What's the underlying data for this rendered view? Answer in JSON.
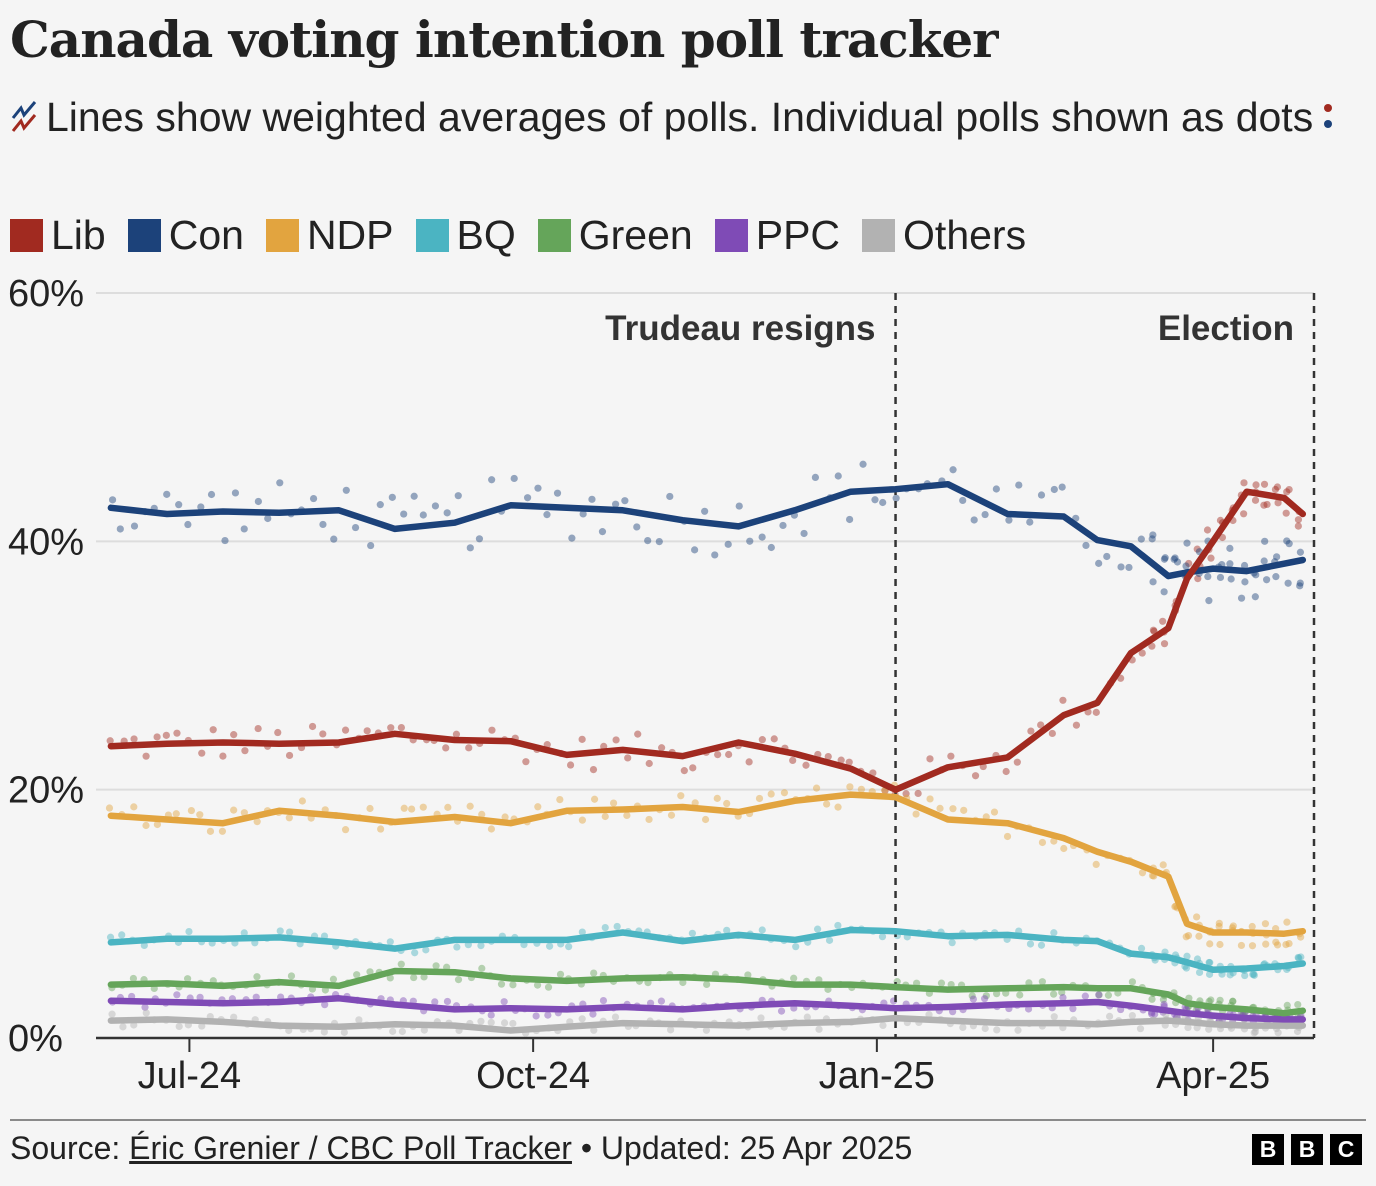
{
  "title": "Canada voting intention poll tracker",
  "subtitle_text": "Lines show weighted averages of polls. Individual polls shown as dots",
  "footer": {
    "source_prefix": "Source: ",
    "source_link": "Éric Grenier / CBC Poll Tracker",
    "updated_text": " • Updated: 25 Apr 2025"
  },
  "logo": [
    "B",
    "B",
    "C"
  ],
  "chart_data": {
    "type": "line",
    "y_ticks": [
      "0%",
      "20%",
      "40%",
      "60%"
    ],
    "y_tick_values": [
      0,
      20,
      40,
      60
    ],
    "ylim": [
      0,
      60
    ],
    "x_ticks": [
      "Jul-24",
      "Oct-24",
      "Jan-25",
      "Apr-25"
    ],
    "x_tick_dates": [
      "2024-07-01",
      "2024-10-01",
      "2025-01-01",
      "2025-04-01"
    ],
    "xlim": [
      "2024-06-06",
      "2025-04-28"
    ],
    "grid": true,
    "legend_position": "top-left",
    "annotations": [
      {
        "label": "Trudeau resigns",
        "date": "2025-01-06"
      },
      {
        "label": "Election",
        "date": "2025-04-28"
      }
    ],
    "dates": [
      "2024-06-10",
      "2024-06-25",
      "2024-07-10",
      "2024-07-25",
      "2024-08-10",
      "2024-08-25",
      "2024-09-10",
      "2024-09-25",
      "2024-10-10",
      "2024-10-25",
      "2024-11-10",
      "2024-11-25",
      "2024-12-10",
      "2024-12-25",
      "2025-01-06",
      "2025-01-20",
      "2025-02-05",
      "2025-02-20",
      "2025-03-01",
      "2025-03-10",
      "2025-03-20",
      "2025-03-25",
      "2025-04-01",
      "2025-04-10",
      "2025-04-20",
      "2025-04-25"
    ],
    "series": [
      {
        "name": "Lib",
        "color": "#a12a20",
        "values": [
          23.5,
          23.7,
          23.8,
          23.7,
          23.8,
          24.5,
          24,
          23.9,
          22.8,
          23.2,
          22.7,
          23.8,
          22.9,
          21.7,
          20,
          21.8,
          22.6,
          26,
          27,
          31,
          33,
          37,
          40,
          44,
          43.5,
          42.2
        ]
      },
      {
        "name": "Con",
        "color": "#1c427a",
        "values": [
          42.7,
          42.2,
          42.4,
          42.3,
          42.5,
          41,
          41.5,
          42.9,
          42.7,
          42.5,
          41.7,
          41.2,
          42.5,
          44,
          44.2,
          44.6,
          42.2,
          42,
          40.1,
          39.6,
          37.2,
          37.5,
          37.8,
          37.6,
          38.2,
          38.5
        ]
      },
      {
        "name": "NDP",
        "color": "#e2a43f",
        "values": [
          17.9,
          17.6,
          17.3,
          18.3,
          17.9,
          17.4,
          17.8,
          17.3,
          18.3,
          18.4,
          18.6,
          18.2,
          19.1,
          19.6,
          19.4,
          17.6,
          17.3,
          16.1,
          15,
          14.2,
          13,
          9.2,
          8.5,
          8.5,
          8.4,
          8.6
        ]
      },
      {
        "name": "BQ",
        "color": "#4bb4c2",
        "values": [
          7.7,
          8,
          8,
          8.1,
          7.7,
          7.2,
          7.9,
          7.9,
          7.9,
          8.5,
          7.8,
          8.3,
          7.9,
          8.7,
          8.6,
          8.2,
          8.3,
          7.9,
          7.8,
          6.8,
          6.5,
          6.1,
          5.5,
          5.6,
          5.8,
          6
        ]
      },
      {
        "name": "Green",
        "color": "#65a55a",
        "values": [
          4.3,
          4.4,
          4.2,
          4.5,
          4.2,
          5.4,
          5.3,
          4.8,
          4.6,
          4.8,
          4.9,
          4.7,
          4.3,
          4.3,
          4.1,
          3.9,
          4,
          4.1,
          4,
          4,
          3.5,
          2.8,
          2.5,
          2.3,
          2,
          2.2
        ]
      },
      {
        "name": "PPC",
        "color": "#7f4bb6",
        "values": [
          3,
          2.9,
          2.8,
          2.9,
          3.2,
          2.7,
          2.3,
          2.4,
          2.3,
          2.5,
          2.3,
          2.6,
          2.8,
          2.6,
          2.4,
          2.5,
          2.7,
          2.8,
          2.9,
          2.6,
          2.2,
          2,
          1.8,
          1.6,
          1.5,
          1.5
        ]
      },
      {
        "name": "Others",
        "color": "#b2b2b2",
        "values": [
          1.4,
          1.5,
          1.3,
          1,
          0.9,
          1.1,
          1,
          0.6,
          0.9,
          1.2,
          1.1,
          1,
          1.2,
          1.3,
          1.6,
          1.4,
          1.2,
          1.2,
          1.1,
          1.3,
          1.4,
          1.3,
          1.1,
          1,
          1,
          1
        ]
      }
    ]
  }
}
